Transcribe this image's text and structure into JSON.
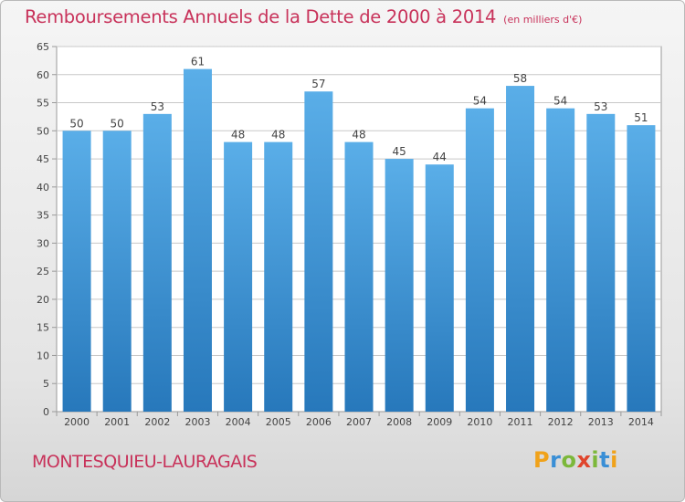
{
  "header": {
    "title": "Remboursements Annuels de la Dette de 2000 à 2014",
    "subtitle": "(en milliers d'€)"
  },
  "footer": {
    "place": "MONTESQUIEU-LAURAGAIS",
    "logo": "Proxiti"
  },
  "colors": {
    "title": "#c8325a",
    "bar_top": "#5aaee8",
    "bar_bottom": "#2778bb",
    "grid": "#c8c8c8"
  },
  "chart_data": {
    "type": "bar",
    "title": "Remboursements Annuels de la Dette de 2000 à 2014",
    "subtitle": "(en milliers d'€)",
    "categories": [
      "2000",
      "2001",
      "2002",
      "2003",
      "2004",
      "2005",
      "2006",
      "2007",
      "2008",
      "2009",
      "2010",
      "2011",
      "2012",
      "2013",
      "2014"
    ],
    "values": [
      50,
      50,
      53,
      61,
      48,
      48,
      57,
      48,
      45,
      44,
      54,
      58,
      54,
      53,
      51
    ],
    "ylim": [
      0,
      65
    ],
    "yticks": [
      0,
      5,
      10,
      15,
      20,
      25,
      30,
      35,
      40,
      45,
      50,
      55,
      60,
      65
    ],
    "grid": true,
    "data_labels": true,
    "xlabel": "",
    "ylabel": ""
  }
}
